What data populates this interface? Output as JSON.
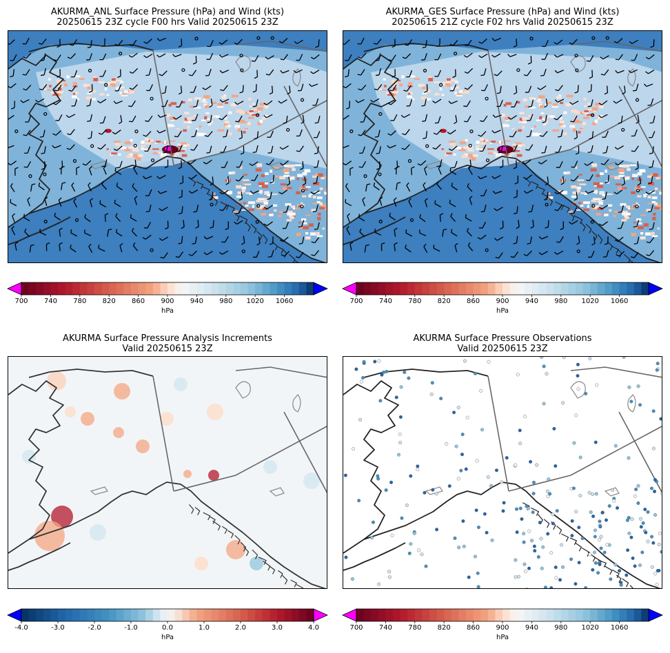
{
  "panels": [
    {
      "title_line1": "AKURMA_ANL Surface Pressure (hPa) and Wind (kts)",
      "title_line2": "20250615 23Z cycle F00 hrs Valid 20250615 23Z",
      "type": "pressure-wind"
    },
    {
      "title_line1": "AKURMA_GES Surface Pressure (hPa) and Wind (kts)",
      "title_line2": "20250615 21Z cycle F02 hrs Valid 20250615 23Z",
      "type": "pressure-wind"
    },
    {
      "title_line1": "AKURMA Surface Pressure Analysis Increments",
      "title_line2": "Valid 20250615 23Z",
      "type": "increments"
    },
    {
      "title_line1": "AKURMA Surface Pressure Observations",
      "title_line2": "Valid 20250615 23Z",
      "type": "observations"
    }
  ],
  "colorbars": {
    "pressure": {
      "unit": "hPa",
      "ticks": [
        "700",
        "740",
        "780",
        "820",
        "860",
        "900",
        "940",
        "980",
        "1020",
        "1060"
      ],
      "range": [
        700,
        1100
      ],
      "under_color": "#ff00ff",
      "over_color": "#0000ff"
    },
    "increments": {
      "unit": "hPa",
      "ticks": [
        "-4.0",
        "-3.0",
        "-2.0",
        "-1.0",
        "0.0",
        "1.0",
        "2.0",
        "3.0",
        "4.0"
      ],
      "range": [
        -4.0,
        4.0
      ],
      "under_color": "#0000ff",
      "over_color": "#ff00ff"
    }
  },
  "colors": {
    "ocean": "#3d7fbf",
    "coast": "#222222",
    "border": "#666666"
  }
}
